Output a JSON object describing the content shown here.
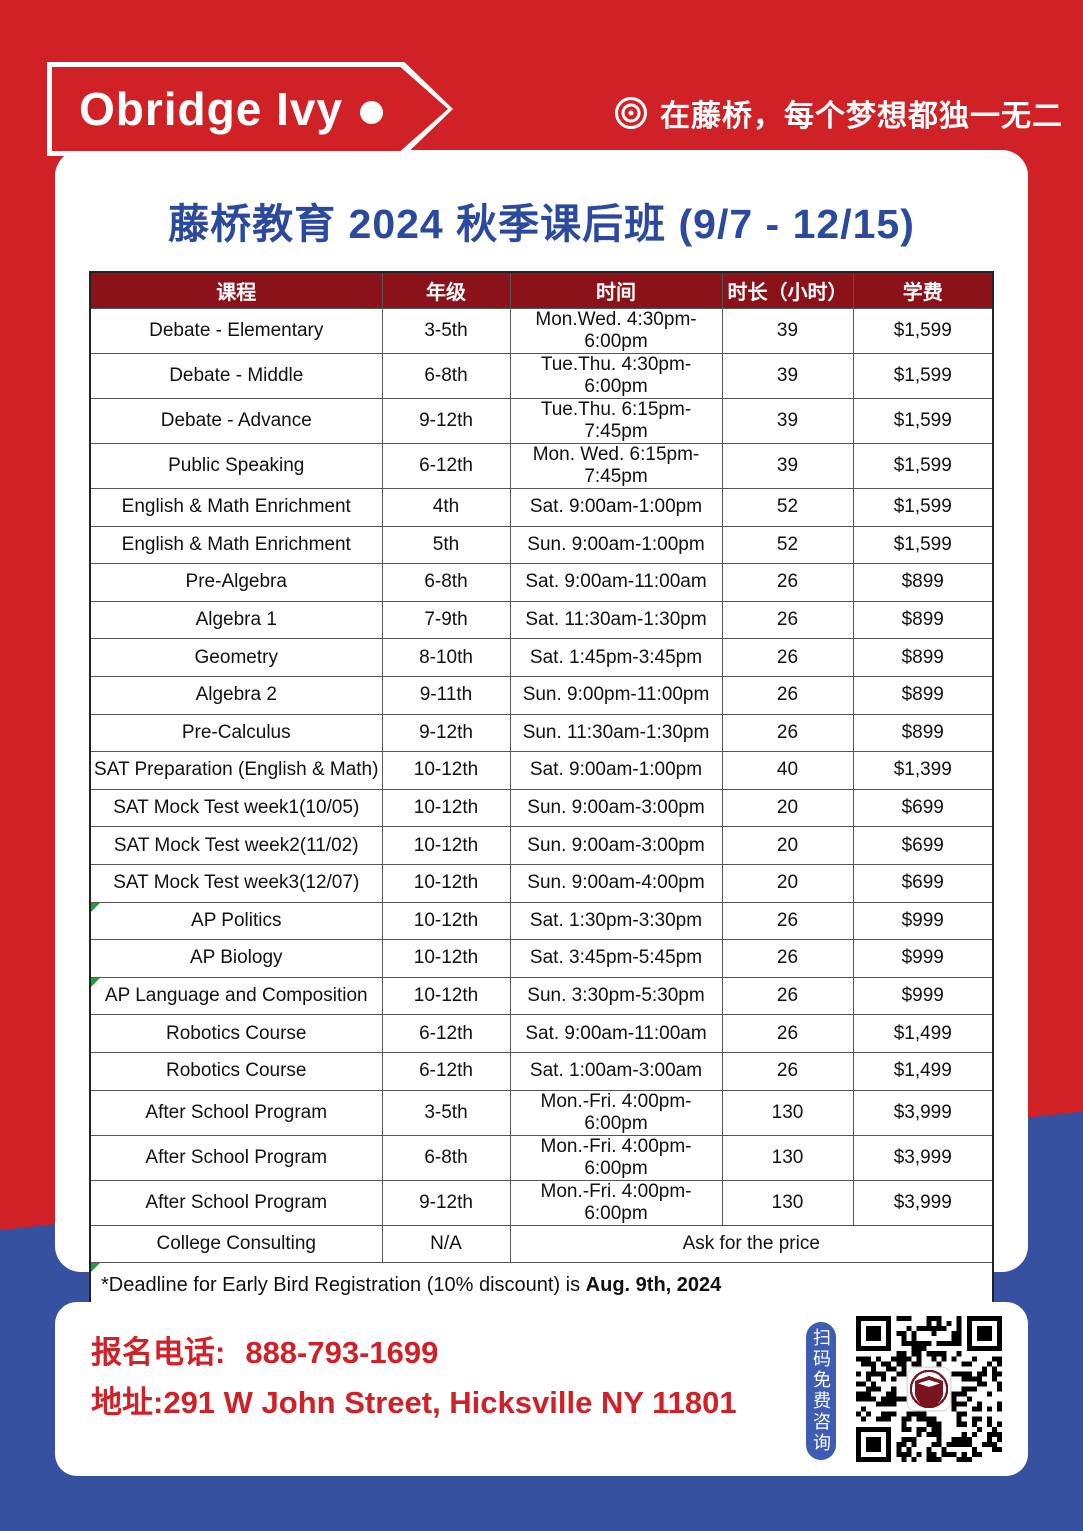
{
  "brand": {
    "logo_text": "Obridge Ivy",
    "tagline": "在藤桥，每个梦想都独一无二"
  },
  "page_title": "藤桥教育 2024 秋季课后班 (9/7 - 12/15)",
  "table": {
    "headers": [
      "课程",
      "年级",
      "时间",
      "时长（小时）",
      "学费"
    ],
    "rows": [
      [
        "Debate - Elementary",
        "3-5th",
        "Mon.Wed. 4:30pm-6:00pm",
        "39",
        "$1,599"
      ],
      [
        "Debate - Middle",
        "6-8th",
        "Tue.Thu. 4:30pm-6:00pm",
        "39",
        "$1,599"
      ],
      [
        "Debate - Advance",
        "9-12th",
        "Tue.Thu. 6:15pm-7:45pm",
        "39",
        "$1,599"
      ],
      [
        "Public Speaking",
        "6-12th",
        "Mon. Wed. 6:15pm-7:45pm",
        "39",
        "$1,599"
      ],
      [
        "English & Math Enrichment",
        "4th",
        "Sat. 9:00am-1:00pm",
        "52",
        "$1,599"
      ],
      [
        "English & Math Enrichment",
        "5th",
        "Sun. 9:00am-1:00pm",
        "52",
        "$1,599"
      ],
      [
        "Pre-Algebra",
        "6-8th",
        "Sat. 9:00am-11:00am",
        "26",
        "$899"
      ],
      [
        "Algebra 1",
        "7-9th",
        "Sat. 11:30am-1:30pm",
        "26",
        "$899"
      ],
      [
        "Geometry",
        "8-10th",
        "Sat. 1:45pm-3:45pm",
        "26",
        "$899"
      ],
      [
        "Algebra 2",
        "9-11th",
        "Sun. 9:00pm-11:00pm",
        "26",
        "$899"
      ],
      [
        "Pre-Calculus",
        "9-12th",
        "Sun. 11:30am-1:30pm",
        "26",
        "$899"
      ],
      [
        "SAT Preparation (English & Math)",
        "10-12th",
        "Sat. 9:00am-1:00pm",
        "40",
        "$1,399"
      ],
      [
        "SAT Mock Test week1(10/05)",
        "10-12th",
        "Sun. 9:00am-3:00pm",
        "20",
        "$699"
      ],
      [
        "SAT Mock Test week2(11/02)",
        "10-12th",
        "Sun. 9:00am-3:00pm",
        "20",
        "$699"
      ],
      [
        "SAT Mock Test week3(12/07)",
        "10-12th",
        "Sun. 9:00am-4:00pm",
        "20",
        "$699"
      ],
      [
        "AP Politics",
        "10-12th",
        "Sat. 1:30pm-3:30pm",
        "26",
        "$999"
      ],
      [
        "AP Biology",
        "10-12th",
        "Sat. 3:45pm-5:45pm",
        "26",
        "$999"
      ],
      [
        "AP Language and Composition",
        "10-12th",
        "Sun. 3:30pm-5:30pm",
        "26",
        "$999"
      ],
      [
        "Robotics Course",
        "6-12th",
        "Sat. 9:00am-11:00am",
        "26",
        "$1,499"
      ],
      [
        "Robotics Course",
        "6-12th",
        "Sat. 1:00am-3:00am",
        "26",
        "$1,499"
      ],
      [
        "After School Program",
        "3-5th",
        "Mon.-Fri. 4:00pm-6:00pm",
        "130",
        "$3,999"
      ],
      [
        "After School Program",
        "6-8th",
        "Mon.-Fri. 4:00pm-6:00pm",
        "130",
        "$3,999"
      ],
      [
        "After School Program",
        "9-12th",
        "Mon.-Fri. 4:00pm-6:00pm",
        "130",
        "$3,999"
      ],
      [
        "College Consulting",
        "N/A",
        "Ask for the price",
        "",
        ""
      ]
    ],
    "merged_row_index": 23,
    "marked_row_indexes": [
      15,
      17
    ],
    "footnote_prefix": "*Deadline for Early Bird Registration (10% discount) is ",
    "footnote_bold": "Aug. 9th, 2024"
  },
  "contact": {
    "phone_label": "报名电话:",
    "phone": "888-793-1699",
    "address_label": "地址:",
    "address": "291 W John Street, Hicksville NY 11801"
  },
  "qr": {
    "tab_text": "扫码免费咨询"
  },
  "colors": {
    "brand_red": "#d02226",
    "brand_blue": "#35519f",
    "table_header_maroon": "#8c1219",
    "title_blue": "#2c4a9d",
    "contact_red": "#cf2127",
    "marker_green": "#1f9d3a"
  }
}
